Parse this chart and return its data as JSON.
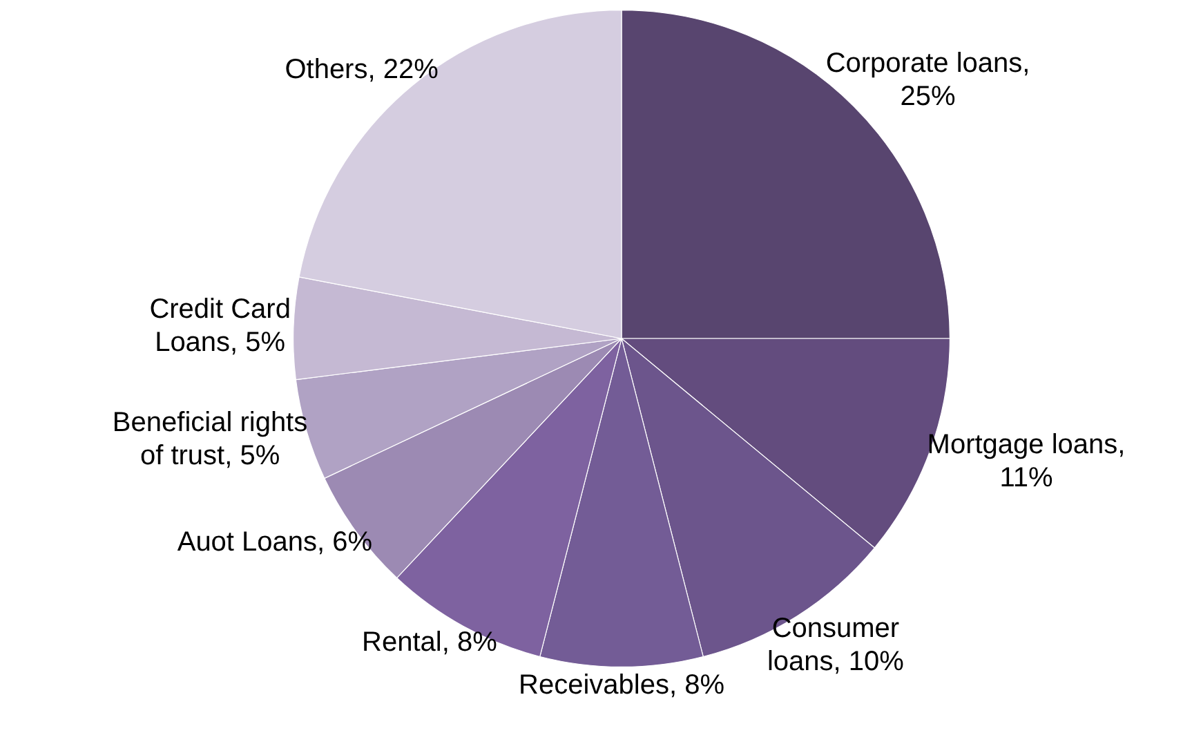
{
  "chart_data": {
    "type": "pie",
    "categories": [
      "Corporate loans, 25%",
      "Mortgage loans, 11%",
      "Consumer loans, 10%",
      "Receivables, 8%",
      "Rental, 8%",
      "Auot Loans, 6%",
      "Beneficial rights of trust, 5%",
      "Credit Card Loans, 5%",
      "Others, 22%"
    ],
    "values": [
      25,
      11,
      10,
      8,
      8,
      6,
      5,
      5,
      22
    ],
    "colors": [
      "#58456f",
      "#634c7e",
      "#6c558c",
      "#735c96",
      "#7e62a0",
      "#9c8ab3",
      "#b0a2c4",
      "#c5b9d3",
      "#d5cde0"
    ],
    "legend": false
  }
}
